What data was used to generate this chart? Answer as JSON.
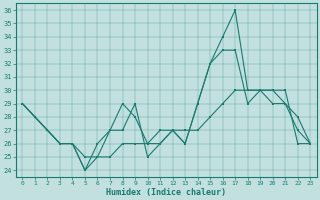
{
  "xlabel": "Humidex (Indice chaleur)",
  "bg_color": "#c2e0e0",
  "line_color": "#1a7a6e",
  "xlim": [
    -0.5,
    23.5
  ],
  "ylim": [
    23.5,
    36.5
  ],
  "yticks": [
    24,
    25,
    26,
    27,
    28,
    29,
    30,
    31,
    32,
    33,
    34,
    35,
    36
  ],
  "xticks": [
    0,
    1,
    2,
    3,
    4,
    5,
    6,
    7,
    8,
    9,
    10,
    11,
    12,
    13,
    14,
    15,
    16,
    17,
    18,
    19,
    20,
    21,
    22,
    23
  ],
  "line1_x": [
    0,
    1,
    2,
    3,
    4,
    5,
    6,
    7,
    8,
    9,
    10,
    11,
    12,
    13,
    14,
    15,
    16,
    17,
    18,
    19,
    20,
    21,
    22,
    23
  ],
  "line1_y": [
    29,
    28,
    27,
    26,
    26,
    24,
    25,
    27,
    27,
    29,
    25,
    26,
    27,
    26,
    29,
    32,
    33,
    33,
    29,
    30,
    30,
    29,
    28,
    26
  ],
  "line2_x": [
    0,
    1,
    2,
    3,
    4,
    5,
    6,
    7,
    8,
    9,
    10,
    11,
    12,
    13,
    14,
    15,
    16,
    17,
    18,
    19,
    20,
    21,
    22,
    23
  ],
  "line2_y": [
    29,
    28,
    27,
    26,
    26,
    24,
    26,
    27,
    29,
    28,
    26,
    27,
    27,
    26,
    29,
    32,
    34,
    36,
    30,
    30,
    29,
    29,
    27,
    26
  ],
  "line3_x": [
    0,
    1,
    2,
    3,
    4,
    5,
    6,
    7,
    8,
    9,
    10,
    11,
    12,
    13,
    14,
    15,
    16,
    17,
    18,
    19,
    20,
    21,
    22,
    23
  ],
  "line3_y": [
    29,
    28,
    27,
    26,
    26,
    25,
    25,
    25,
    26,
    26,
    26,
    26,
    27,
    27,
    27,
    28,
    29,
    30,
    30,
    30,
    30,
    30,
    26,
    26
  ]
}
